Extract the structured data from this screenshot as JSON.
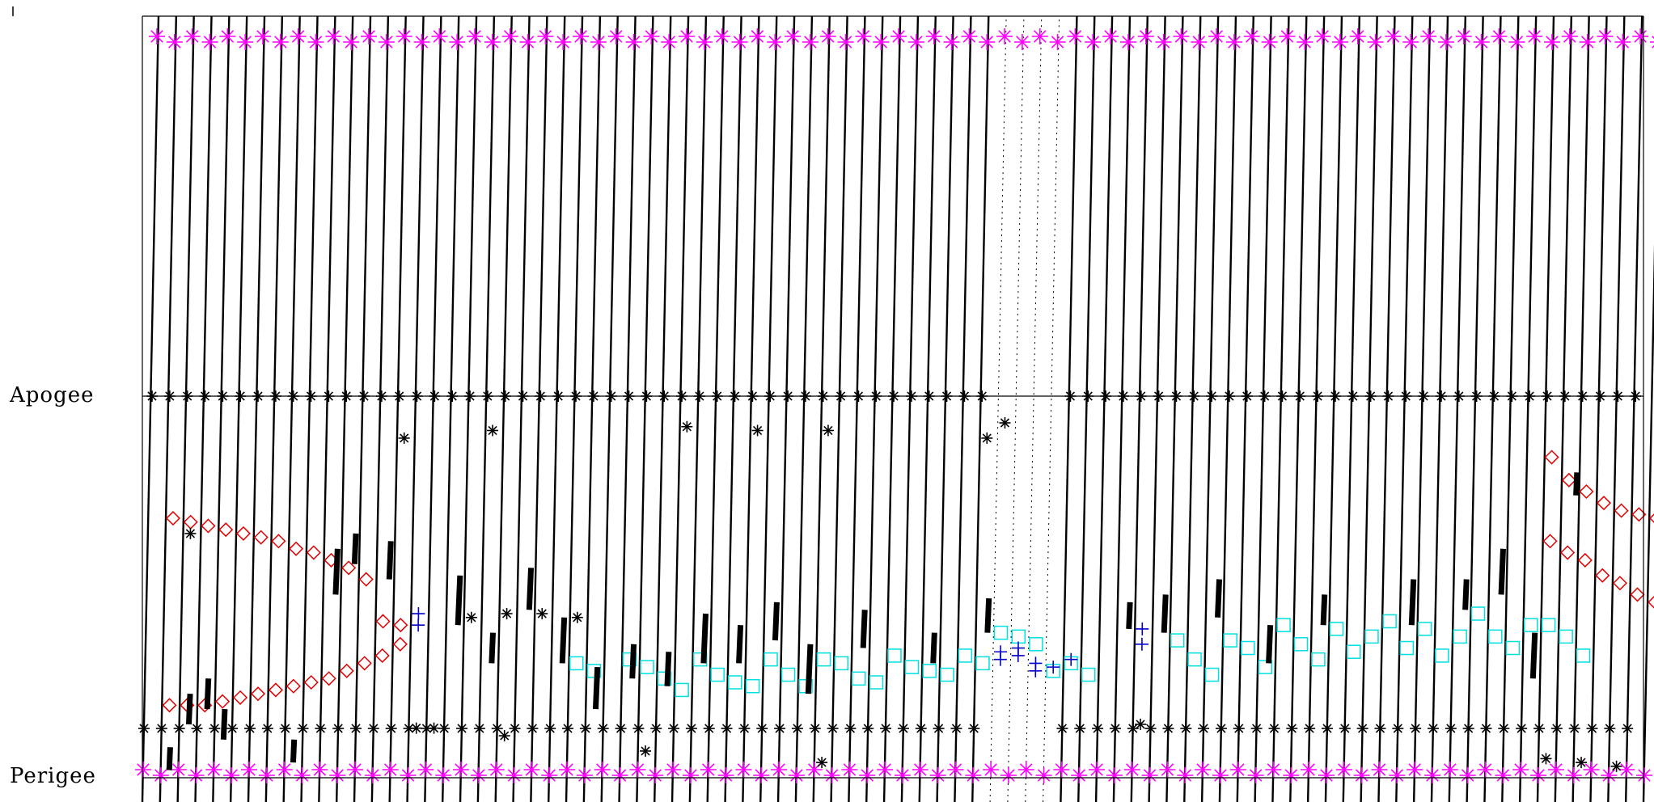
{
  "chart_data": {
    "type": "scatter",
    "title": "",
    "xlabel": "",
    "ylabel": "",
    "y_tick_labels": [
      "Apogee",
      "Perigee"
    ],
    "x_range": [
      0,
      85
    ],
    "y_range": [
      -0.05,
      1.05
    ],
    "grid": false,
    "legend": "none",
    "orbit_passes": 85,
    "colors": {
      "axes": "#000000",
      "orbit_track": "#000000",
      "boundary_marker": "#ff00ff",
      "crossing_marker": "#000000",
      "diamond_series": "#e00000",
      "square_series": "#00e0e0",
      "plus_series": "#0000cc"
    },
    "series": [
      {
        "marker": "diamond",
        "points": [
          [
            1,
            0.68
          ],
          [
            2,
            0.67
          ],
          [
            3,
            0.66
          ],
          [
            4,
            0.65
          ],
          [
            5,
            0.64
          ],
          [
            6,
            0.63
          ],
          [
            7,
            0.62
          ],
          [
            8,
            0.6
          ],
          [
            9,
            0.59
          ],
          [
            10,
            0.57
          ],
          [
            11,
            0.55
          ],
          [
            12,
            0.52
          ],
          [
            1,
            0.19
          ],
          [
            2,
            0.19
          ],
          [
            3,
            0.19
          ],
          [
            4,
            0.2
          ],
          [
            5,
            0.21
          ],
          [
            6,
            0.22
          ],
          [
            7,
            0.23
          ],
          [
            8,
            0.24
          ],
          [
            9,
            0.25
          ],
          [
            10,
            0.26
          ],
          [
            11,
            0.28
          ],
          [
            12,
            0.3
          ],
          [
            13,
            0.32
          ],
          [
            14,
            0.35
          ],
          [
            13,
            0.41
          ],
          [
            14,
            0.4
          ],
          [
            79,
            0.62
          ],
          [
            80,
            0.59
          ],
          [
            81,
            0.57
          ],
          [
            82,
            0.53
          ],
          [
            83,
            0.51
          ],
          [
            84,
            0.48
          ],
          [
            85,
            0.46
          ],
          [
            79,
            0.84
          ],
          [
            80,
            0.78
          ],
          [
            81,
            0.75
          ],
          [
            82,
            0.72
          ],
          [
            83,
            0.7
          ],
          [
            84,
            0.69
          ],
          [
            85,
            0.68
          ],
          [
            86,
            0.67
          ],
          [
            87,
            0.67
          ]
        ]
      },
      {
        "marker": "square",
        "points": [
          [
            24,
            0.3
          ],
          [
            25,
            0.28
          ],
          [
            27,
            0.31
          ],
          [
            28,
            0.29
          ],
          [
            29,
            0.26
          ],
          [
            30,
            0.23
          ],
          [
            31,
            0.31
          ],
          [
            32,
            0.27
          ],
          [
            33,
            0.25
          ],
          [
            34,
            0.24
          ],
          [
            35,
            0.31
          ],
          [
            36,
            0.27
          ],
          [
            37,
            0.24
          ],
          [
            38,
            0.31
          ],
          [
            39,
            0.3
          ],
          [
            40,
            0.26
          ],
          [
            41,
            0.25
          ],
          [
            42,
            0.32
          ],
          [
            43,
            0.29
          ],
          [
            44,
            0.28
          ],
          [
            45,
            0.27
          ],
          [
            46,
            0.32
          ],
          [
            47,
            0.3
          ],
          [
            48,
            0.38
          ],
          [
            49,
            0.37
          ],
          [
            50,
            0.35
          ],
          [
            51,
            0.28
          ],
          [
            52,
            0.3
          ],
          [
            53,
            0.27
          ],
          [
            58,
            0.36
          ],
          [
            59,
            0.31
          ],
          [
            60,
            0.27
          ],
          [
            61,
            0.36
          ],
          [
            62,
            0.34
          ],
          [
            63,
            0.29
          ],
          [
            64,
            0.4
          ],
          [
            65,
            0.35
          ],
          [
            66,
            0.31
          ],
          [
            67,
            0.39
          ],
          [
            68,
            0.33
          ],
          [
            69,
            0.37
          ],
          [
            70,
            0.41
          ],
          [
            71,
            0.34
          ],
          [
            72,
            0.39
          ],
          [
            73,
            0.32
          ],
          [
            74,
            0.37
          ],
          [
            75,
            0.43
          ],
          [
            76,
            0.37
          ],
          [
            77,
            0.34
          ],
          [
            78,
            0.4
          ],
          [
            79,
            0.4
          ],
          [
            80,
            0.37
          ],
          [
            81,
            0.32
          ]
        ]
      },
      {
        "marker": "plus",
        "points": [
          [
            15,
            0.4
          ],
          [
            15,
            0.43
          ],
          [
            48,
            0.33
          ],
          [
            48,
            0.31
          ],
          [
            49,
            0.32
          ],
          [
            49,
            0.34
          ],
          [
            50,
            0.28
          ],
          [
            50,
            0.3
          ],
          [
            51,
            0.29
          ],
          [
            52,
            0.31
          ],
          [
            56,
            0.35
          ],
          [
            56,
            0.39
          ]
        ]
      },
      {
        "marker": "star",
        "points": [
          [
            2,
            0.64
          ],
          [
            14,
            0.89
          ],
          [
            19,
            0.91
          ],
          [
            30,
            0.92
          ],
          [
            34,
            0.91
          ],
          [
            38,
            0.91
          ],
          [
            47,
            0.89
          ],
          [
            48,
            0.93
          ],
          [
            18,
            0.42
          ],
          [
            20,
            0.43
          ],
          [
            22,
            0.43
          ],
          [
            24,
            0.42
          ],
          [
            56,
            0.14
          ],
          [
            15,
            0.13
          ],
          [
            20,
            0.11
          ],
          [
            16,
            0.13
          ],
          [
            28,
            0.07
          ],
          [
            38,
            0.04
          ],
          [
            79,
            0.05
          ],
          [
            81,
            0.04
          ],
          [
            83,
            0.03
          ]
        ]
      }
    ]
  }
}
